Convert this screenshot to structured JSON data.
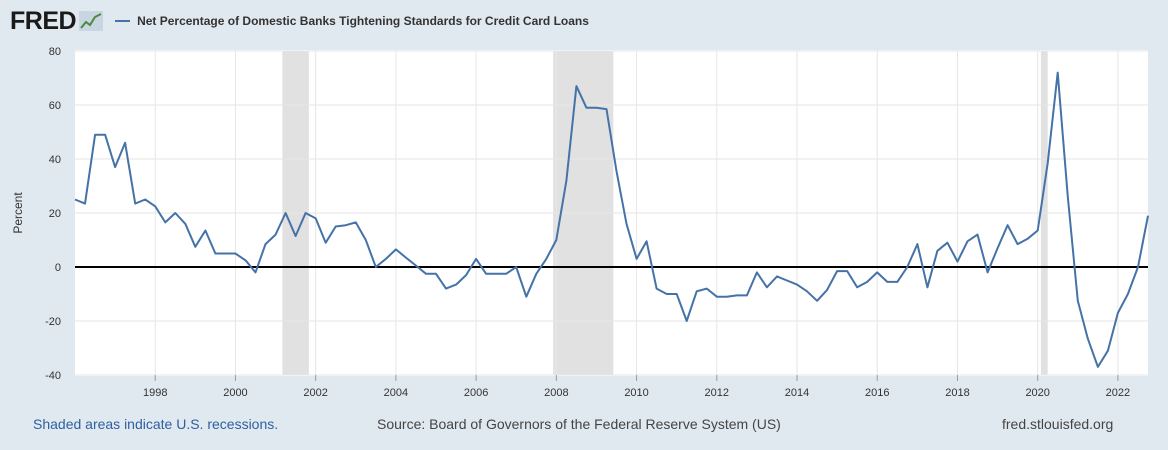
{
  "header": {
    "logo_text": "FRED",
    "logo_icon": "line-graph-icon",
    "title": "Net Percentage of Domestic Banks Tightening Standards for Credit Card Loans"
  },
  "footer": {
    "recession_note": "Shaded areas indicate U.S. recessions.",
    "source": "Source: Board of Governors of the Federal Reserve System (US)",
    "site": "fred.stlouisfed.org"
  },
  "colors": {
    "background": "#e1e9f0",
    "plot_background": "#ffffff",
    "series": "#4572a7",
    "recession": "#e1e1e1",
    "gridline": "#e6e6e6",
    "zero_line": "#000000",
    "link": "#2e5fa0"
  },
  "chart_data": {
    "type": "line",
    "ylabel": "Percent",
    "ylim": [
      -40,
      80
    ],
    "xlim": [
      1996.0,
      2022.75
    ],
    "yticks": [
      -40,
      -20,
      0,
      20,
      40,
      60,
      80
    ],
    "xticks": [
      1998,
      2000,
      2002,
      2004,
      2006,
      2008,
      2010,
      2012,
      2014,
      2016,
      2018,
      2020,
      2022
    ],
    "grid": true,
    "zero_line": true,
    "recessions": [
      [
        2001.17,
        2001.83
      ],
      [
        2007.92,
        2009.42
      ],
      [
        2020.08,
        2020.25
      ]
    ],
    "series": [
      {
        "name": "Net Percentage of Domestic Banks Tightening Standards for Credit Card Loans",
        "x": [
          1996.0,
          1996.25,
          1996.5,
          1996.75,
          1997.0,
          1997.25,
          1997.5,
          1997.75,
          1998.0,
          1998.25,
          1998.5,
          1998.75,
          1999.0,
          1999.25,
          1999.5,
          1999.75,
          2000.0,
          2000.25,
          2000.5,
          2000.75,
          2001.0,
          2001.25,
          2001.5,
          2001.75,
          2002.0,
          2002.25,
          2002.5,
          2002.75,
          2003.0,
          2003.25,
          2003.5,
          2003.75,
          2004.0,
          2004.25,
          2004.5,
          2004.75,
          2005.0,
          2005.25,
          2005.5,
          2005.75,
          2006.0,
          2006.25,
          2006.5,
          2006.75,
          2007.0,
          2007.25,
          2007.5,
          2007.75,
          2008.0,
          2008.25,
          2008.5,
          2008.75,
          2009.0,
          2009.25,
          2009.5,
          2009.75,
          2010.0,
          2010.25,
          2010.5,
          2010.75,
          2011.0,
          2011.25,
          2011.5,
          2011.75,
          2012.0,
          2012.25,
          2012.5,
          2012.75,
          2013.0,
          2013.25,
          2013.5,
          2013.75,
          2014.0,
          2014.25,
          2014.5,
          2014.75,
          2015.0,
          2015.25,
          2015.5,
          2015.75,
          2016.0,
          2016.25,
          2016.5,
          2016.75,
          2017.0,
          2017.25,
          2017.5,
          2017.75,
          2018.0,
          2018.25,
          2018.5,
          2018.75,
          2019.0,
          2019.25,
          2019.5,
          2019.75,
          2020.0,
          2020.25,
          2020.5,
          2020.75,
          2021.0,
          2021.25,
          2021.5,
          2021.75,
          2022.0,
          2022.25,
          2022.5,
          2022.75
        ],
        "values": [
          25,
          23.5,
          49,
          49,
          37,
          46,
          23.5,
          25,
          22.5,
          16.5,
          20,
          16,
          7.5,
          13.5,
          5,
          5,
          5,
          2.5,
          -2,
          8.5,
          12,
          20,
          11.5,
          20,
          18,
          9,
          15,
          15.5,
          16.5,
          10,
          0,
          3,
          6.5,
          3.5,
          0.5,
          -2.5,
          -2.5,
          -8,
          -6.5,
          -3,
          3,
          -2.5,
          -2.5,
          -2.5,
          0,
          -11,
          -2.5,
          3,
          10,
          32,
          67,
          59,
          59,
          58.5,
          35.5,
          16,
          3,
          9.5,
          -8,
          -10,
          -10,
          -20,
          -9,
          -8,
          -11,
          -11,
          -10.5,
          -10.5,
          -2,
          -7.5,
          -3.5,
          -5,
          -6.5,
          -9,
          -12.5,
          -8.5,
          -1.5,
          -1.5,
          -7.5,
          -5.5,
          -2,
          -5.5,
          -5.5,
          0,
          8.5,
          -7.5,
          6,
          9,
          2,
          9.5,
          12,
          -2,
          7,
          15.5,
          8.5,
          10.5,
          13.5,
          38.5,
          72,
          26,
          -12.5,
          -26.5,
          -37,
          -31,
          -17,
          -10,
          0,
          19
        ]
      }
    ]
  }
}
